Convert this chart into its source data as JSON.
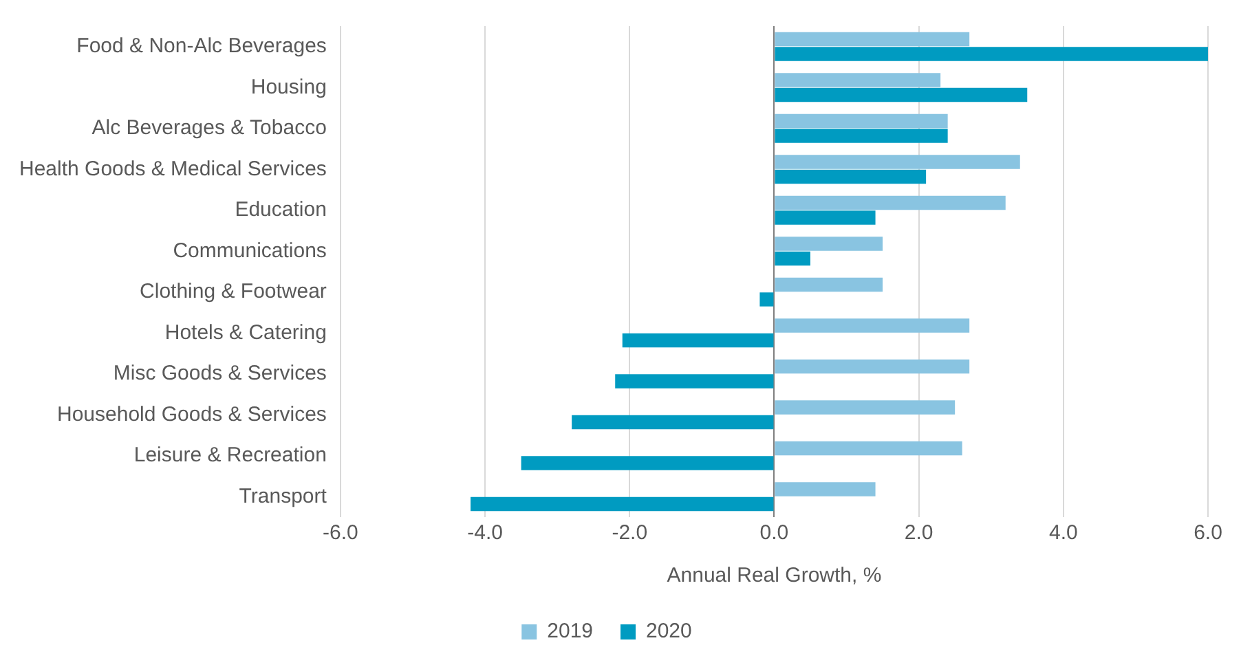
{
  "chart_data": {
    "type": "bar",
    "orientation": "horizontal",
    "xlabel": "Annual Real Growth, %",
    "categories": [
      "Food & Non-Alc Beverages",
      "Housing",
      "Alc Beverages & Tobacco",
      "Health Goods & Medical Services",
      "Education",
      "Communications",
      "Clothing & Footwear",
      "Hotels & Catering",
      "Misc Goods & Services",
      "Household Goods & Services",
      "Leisure & Recreation",
      "Transport"
    ],
    "series": [
      {
        "name": "2019",
        "color": "#89c4e1",
        "values": [
          2.7,
          2.3,
          2.4,
          3.4,
          3.2,
          1.5,
          1.5,
          2.7,
          2.7,
          2.5,
          2.6,
          1.4
        ]
      },
      {
        "name": "2020",
        "color": "#009bc1",
        "values": [
          6.0,
          3.5,
          2.4,
          2.1,
          1.4,
          0.5,
          -0.2,
          -2.1,
          -2.2,
          -2.8,
          -3.5,
          -4.2
        ]
      }
    ],
    "xlim": [
      -6,
      6
    ],
    "xticks": [
      {
        "value": -6,
        "label": "-6.0"
      },
      {
        "value": -4,
        "label": "-4.0"
      },
      {
        "value": -2,
        "label": "-2.0"
      },
      {
        "value": 0,
        "label": "0.0"
      },
      {
        "value": 2,
        "label": "2.0"
      },
      {
        "value": 4,
        "label": "4.0"
      },
      {
        "value": 6,
        "label": "6.0"
      }
    ],
    "grid": "x",
    "legend": "bottom"
  }
}
